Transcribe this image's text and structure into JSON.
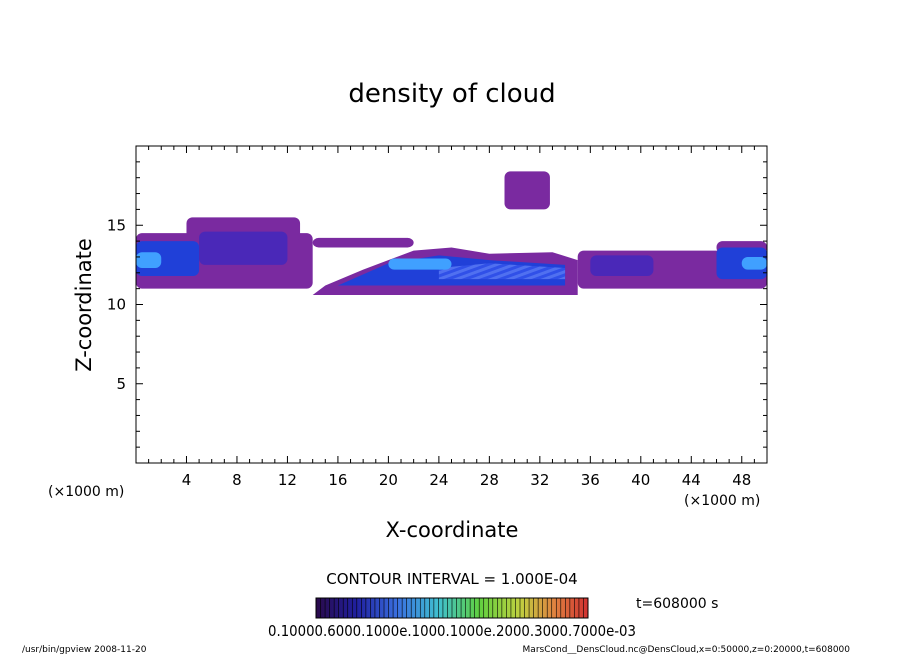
{
  "chart_data": {
    "type": "heatmap",
    "title": "density of cloud",
    "xlabel": "X-coordinate",
    "ylabel": "Z-coordinate",
    "x_unit_left": "(×1000 m)",
    "x_unit_right": "(×1000 m)",
    "xlim": [
      0,
      50
    ],
    "ylim": [
      0,
      20
    ],
    "x_ticks": [
      4,
      8,
      12,
      16,
      20,
      24,
      28,
      32,
      36,
      40,
      44,
      48
    ],
    "y_ticks": [
      5,
      10,
      15
    ],
    "contour_interval": "CONTOUR INTERVAL = 1.000E-04",
    "time_label": "t=608000 s",
    "colorbar_label": "0.10000.6000.1000e.1000.1000e.2000.3000.7000e-03",
    "colormap": [
      "#2a0a4a",
      "#3a1a8a",
      "#2030c0",
      "#3a70e0",
      "#40b0e0",
      "#40d0a0",
      "#60d040",
      "#c0d040",
      "#e0a040",
      "#e06040",
      "#d03030"
    ],
    "cloud_regions": [
      {
        "name": "left-band",
        "x": [
          0,
          14
        ],
        "z": [
          11.0,
          15.5
        ],
        "core_x": [
          0,
          12
        ],
        "core_z": [
          12.0,
          14.5
        ]
      },
      {
        "name": "central-band",
        "x": [
          14,
          35
        ],
        "z": [
          10.5,
          13.5
        ],
        "core_x": [
          17,
          34
        ],
        "core_z": [
          11.3,
          13.0
        ]
      },
      {
        "name": "right-band",
        "x": [
          35,
          50
        ],
        "z": [
          10.8,
          14.0
        ],
        "core_x": [
          36,
          50
        ],
        "core_z": [
          11.8,
          13.5
        ]
      },
      {
        "name": "upper-patch",
        "x": [
          29,
          33
        ],
        "z": [
          15.8,
          18.5
        ],
        "core_x": [],
        "core_z": []
      }
    ]
  },
  "footer": {
    "left": "/usr/bin/gpview   2008-11-20",
    "right": "MarsCond__DensCloud.nc@DensCloud,x=0:50000,z=0:20000,t=608000"
  },
  "colors": {
    "outer": "#7a2aa0",
    "mid": "#4a28b8",
    "core": "#2040d8",
    "highlight": "#40a0ff"
  }
}
